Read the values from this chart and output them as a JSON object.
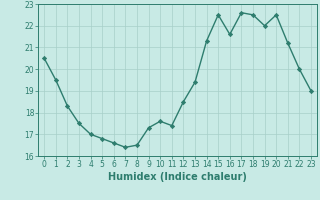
{
  "x": [
    0,
    1,
    2,
    3,
    4,
    5,
    6,
    7,
    8,
    9,
    10,
    11,
    12,
    13,
    14,
    15,
    16,
    17,
    18,
    19,
    20,
    21,
    22,
    23
  ],
  "y": [
    20.5,
    19.5,
    18.3,
    17.5,
    17.0,
    16.8,
    16.6,
    16.4,
    16.5,
    17.3,
    17.6,
    17.4,
    18.5,
    19.4,
    21.3,
    22.5,
    21.6,
    22.6,
    22.5,
    22.0,
    22.5,
    21.2,
    20.0,
    19.0
  ],
  "line_color": "#2e7d6e",
  "marker": "D",
  "markersize": 2.2,
  "bg_color": "#c8eae5",
  "grid_color": "#a8cfc9",
  "xlabel": "Humidex (Indice chaleur)",
  "xlim": [
    -0.5,
    23.5
  ],
  "ylim": [
    16,
    23
  ],
  "yticks": [
    16,
    17,
    18,
    19,
    20,
    21,
    22,
    23
  ],
  "xticks": [
    0,
    1,
    2,
    3,
    4,
    5,
    6,
    7,
    8,
    9,
    10,
    11,
    12,
    13,
    14,
    15,
    16,
    17,
    18,
    19,
    20,
    21,
    22,
    23
  ],
  "tick_label_fontsize": 5.5,
  "xlabel_fontsize": 7.0,
  "linewidth": 1.0
}
